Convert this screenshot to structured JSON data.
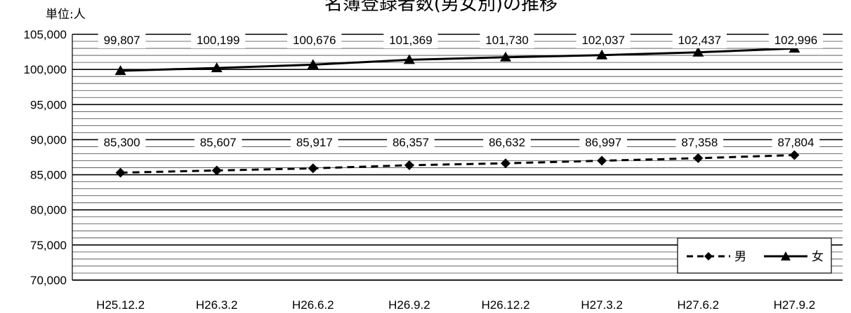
{
  "chart_data": {
    "type": "line",
    "title": "名簿登録者数(男女別)の推移",
    "unit_label": "単位:人",
    "categories": [
      "H25.12.2",
      "H26.3.2",
      "H26.6.2",
      "H26.9.2",
      "H26.12.2",
      "H27.3.2",
      "H27.6.2",
      "H27.9.2"
    ],
    "ylim": [
      70000,
      105000
    ],
    "yticks": [
      "70,000",
      "75,000",
      "80,000",
      "85,000",
      "90,000",
      "95,000",
      "100,000",
      "105,000"
    ],
    "ytick_values": [
      70000,
      75000,
      80000,
      85000,
      90000,
      95000,
      100000,
      105000
    ],
    "grid": true,
    "legend_position": "bottom-right",
    "series": [
      {
        "name": "男",
        "values": [
          85300,
          85607,
          85917,
          86357,
          86632,
          86997,
          87358,
          87804
        ],
        "labels": [
          "85,300",
          "85,607",
          "85,917",
          "86,357",
          "86,632",
          "86,997",
          "87,358",
          "87,804"
        ],
        "line_style": "dashed",
        "marker": "diamond",
        "color": "#000000"
      },
      {
        "name": "女",
        "values": [
          99807,
          100199,
          100676,
          101369,
          101730,
          102037,
          102437,
          102996
        ],
        "labels": [
          "99,807",
          "100,199",
          "100,676",
          "101,369",
          "101,730",
          "102,037",
          "102,437",
          "102,996"
        ],
        "line_style": "solid",
        "marker": "triangle",
        "color": "#000000"
      }
    ]
  }
}
